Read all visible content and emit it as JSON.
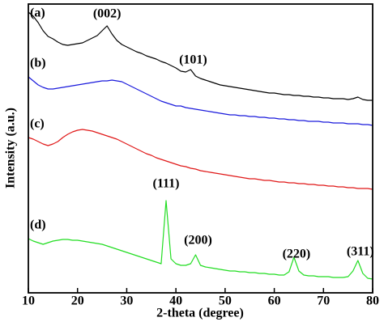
{
  "chart_data": {
    "type": "line",
    "xlabel": "2-theta (degree)",
    "ylabel": "Intensity (a.u.)",
    "xlim": [
      10,
      80
    ],
    "xticks": [
      10,
      20,
      30,
      40,
      50,
      60,
      70,
      80
    ],
    "ylim": [
      0,
      357
    ],
    "x": [
      10,
      11,
      12,
      13,
      14,
      15,
      16,
      17,
      18,
      19,
      20,
      21,
      22,
      23,
      24,
      25,
      26,
      27,
      28,
      29,
      30,
      31,
      32,
      33,
      34,
      35,
      36,
      37,
      38,
      39,
      40,
      41,
      42,
      43,
      44,
      45,
      46,
      47,
      48,
      49,
      50,
      51,
      52,
      53,
      54,
      55,
      56,
      57,
      58,
      59,
      60,
      61,
      62,
      63,
      64,
      65,
      66,
      67,
      68,
      69,
      70,
      71,
      72,
      73,
      74,
      75,
      76,
      77,
      78,
      79,
      80
    ],
    "series": [
      {
        "name": "(a)",
        "color": "#000000",
        "values": [
          347,
          342,
          334,
          324,
          317,
          314,
          310,
          307,
          306,
          307,
          308,
          309,
          312,
          315,
          318,
          324,
          330,
          320,
          312,
          307,
          304,
          301,
          298,
          296,
          293,
          291,
          289,
          286,
          284,
          281,
          278,
          274,
          273,
          276,
          268,
          265,
          263,
          261,
          259,
          257,
          256,
          255,
          254,
          253,
          252,
          251,
          250,
          249,
          248,
          247,
          247,
          246,
          245,
          245,
          244,
          244,
          243,
          243,
          242,
          242,
          241,
          241,
          240,
          240,
          240,
          239,
          240,
          242,
          239,
          238,
          238
        ]
      },
      {
        "name": "(b)",
        "color": "#1a1adc",
        "values": [
          267,
          262,
          257,
          254,
          252,
          252,
          253,
          254,
          255,
          256,
          257,
          258,
          259,
          260,
          261,
          262,
          262,
          263,
          262,
          261,
          258,
          255,
          252,
          249,
          246,
          243,
          240,
          237,
          235,
          233,
          231,
          231,
          229,
          228,
          227,
          226,
          225,
          224,
          223,
          222,
          221,
          220,
          220,
          219,
          219,
          218,
          218,
          217,
          217,
          216,
          216,
          215,
          215,
          214,
          214,
          213,
          213,
          212,
          212,
          212,
          211,
          211,
          210,
          210,
          210,
          209,
          209,
          209,
          208,
          208,
          207
        ]
      },
      {
        "name": "(c)",
        "color": "#e01818",
        "values": [
          192,
          190,
          187,
          184,
          182,
          184,
          187,
          192,
          196,
          199,
          201,
          202,
          201,
          200,
          198,
          196,
          194,
          192,
          190,
          187,
          184,
          181,
          178,
          175,
          172,
          170,
          167,
          165,
          163,
          161,
          159,
          157,
          156,
          154,
          153,
          151,
          150,
          149,
          148,
          147,
          146,
          145,
          144,
          143,
          142,
          141,
          141,
          140,
          139,
          139,
          138,
          137,
          137,
          136,
          136,
          135,
          135,
          134,
          134,
          133,
          133,
          132,
          132,
          131,
          131,
          130,
          130,
          129,
          129,
          129,
          128
        ]
      },
      {
        "name": "(d)",
        "color": "#22dd22",
        "values": [
          67,
          64,
          62,
          60,
          62,
          64,
          65,
          66,
          66,
          65,
          65,
          64,
          63,
          62,
          61,
          60,
          58,
          56,
          54,
          52,
          50,
          48,
          46,
          44,
          42,
          40,
          38,
          36,
          114,
          42,
          36,
          34,
          34,
          36,
          47,
          34,
          32,
          31,
          30,
          29,
          28,
          27,
          27,
          26,
          26,
          25,
          25,
          24,
          24,
          23,
          23,
          22,
          22,
          26,
          44,
          27,
          22,
          21,
          21,
          20,
          20,
          20,
          19,
          19,
          19,
          20,
          27,
          40,
          24,
          18,
          17
        ]
      }
    ],
    "annotations": [
      {
        "text": "(002)",
        "x": 26,
        "y": 344
      },
      {
        "text": "(101)",
        "x": 43.5,
        "y": 287
      },
      {
        "text": "(111)",
        "x": 38,
        "y": 134
      },
      {
        "text": "(200)",
        "x": 44.5,
        "y": 64
      },
      {
        "text": "(220)",
        "x": 64.5,
        "y": 47
      },
      {
        "text": "(311)",
        "x": 77.5,
        "y": 50
      }
    ]
  }
}
